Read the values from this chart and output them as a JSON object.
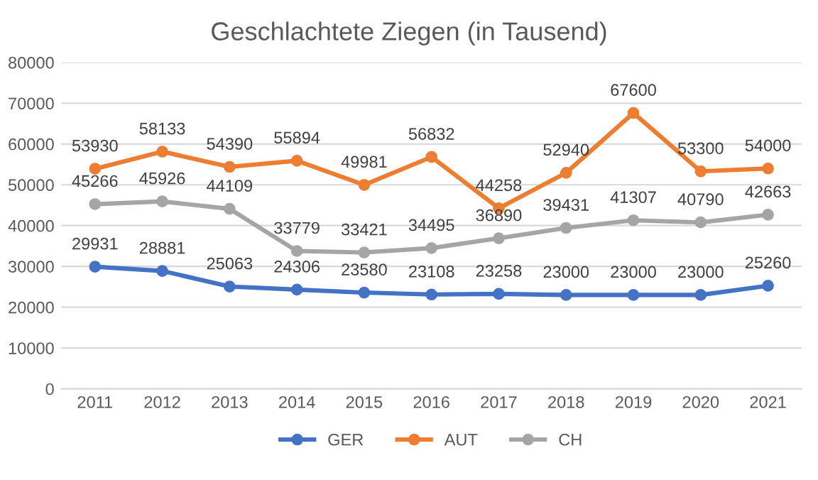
{
  "chart_data": {
    "type": "line",
    "title": "Geschlachtete Ziegen (in Tausend)",
    "categories": [
      "2011",
      "2012",
      "2013",
      "2014",
      "2015",
      "2016",
      "2017",
      "2018",
      "2019",
      "2020",
      "2021"
    ],
    "series": [
      {
        "name": "GER",
        "color": "#4472c4",
        "values": [
          29931,
          28881,
          25063,
          24306,
          23580,
          23108,
          23258,
          23000,
          23000,
          23000,
          25260
        ]
      },
      {
        "name": "AUT",
        "color": "#ed7d31",
        "values": [
          53930,
          58133,
          54390,
          55894,
          49981,
          56832,
          44258,
          52940,
          67600,
          53300,
          54000
        ]
      },
      {
        "name": "CH",
        "color": "#a5a5a5",
        "values": [
          45266,
          45926,
          44109,
          33779,
          33421,
          34495,
          36890,
          39431,
          41307,
          40790,
          42663
        ]
      }
    ],
    "ylim": [
      0,
      80000
    ],
    "yticks": [
      0,
      10000,
      20000,
      30000,
      40000,
      50000,
      60000,
      70000,
      80000
    ],
    "grid": "y",
    "legend": "bottom",
    "marker": "circle",
    "line_style": "solid",
    "data_labels": true
  }
}
